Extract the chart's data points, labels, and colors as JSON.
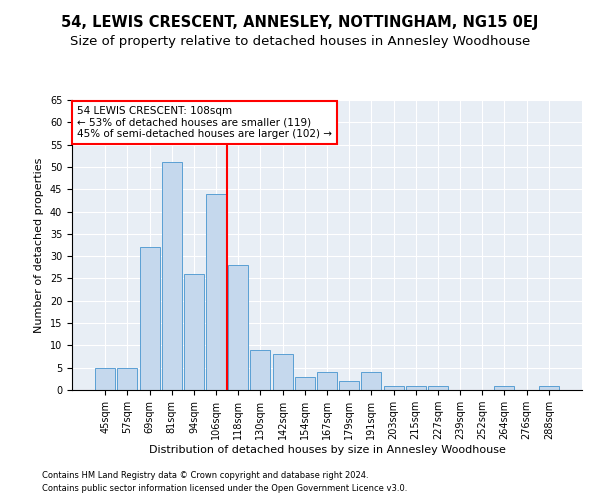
{
  "title": "54, LEWIS CRESCENT, ANNESLEY, NOTTINGHAM, NG15 0EJ",
  "subtitle": "Size of property relative to detached houses in Annesley Woodhouse",
  "xlabel": "Distribution of detached houses by size in Annesley Woodhouse",
  "ylabel": "Number of detached properties",
  "footnote1": "Contains HM Land Registry data © Crown copyright and database right 2024.",
  "footnote2": "Contains public sector information licensed under the Open Government Licence v3.0.",
  "categories": [
    "45sqm",
    "57sqm",
    "69sqm",
    "81sqm",
    "94sqm",
    "106sqm",
    "118sqm",
    "130sqm",
    "142sqm",
    "154sqm",
    "167sqm",
    "179sqm",
    "191sqm",
    "203sqm",
    "215sqm",
    "227sqm",
    "239sqm",
    "252sqm",
    "264sqm",
    "276sqm",
    "288sqm"
  ],
  "values": [
    5,
    5,
    32,
    51,
    26,
    44,
    28,
    9,
    8,
    3,
    4,
    2,
    4,
    1,
    1,
    1,
    0,
    0,
    1,
    0,
    1
  ],
  "bar_color": "#c5d8ed",
  "bar_edge_color": "#5a9fd4",
  "property_line_x": 5.5,
  "property_line_color": "red",
  "annotation_box_text": "54 LEWIS CRESCENT: 108sqm\n← 53% of detached houses are smaller (119)\n45% of semi-detached houses are larger (102) →",
  "ylim": [
    0,
    65
  ],
  "yticks": [
    0,
    5,
    10,
    15,
    20,
    25,
    30,
    35,
    40,
    45,
    50,
    55,
    60,
    65
  ],
  "background_color": "#e8eef5",
  "title_fontsize": 10.5,
  "subtitle_fontsize": 9.5,
  "axis_fontsize": 8,
  "tick_fontsize": 7,
  "annotation_fontsize": 7.5
}
